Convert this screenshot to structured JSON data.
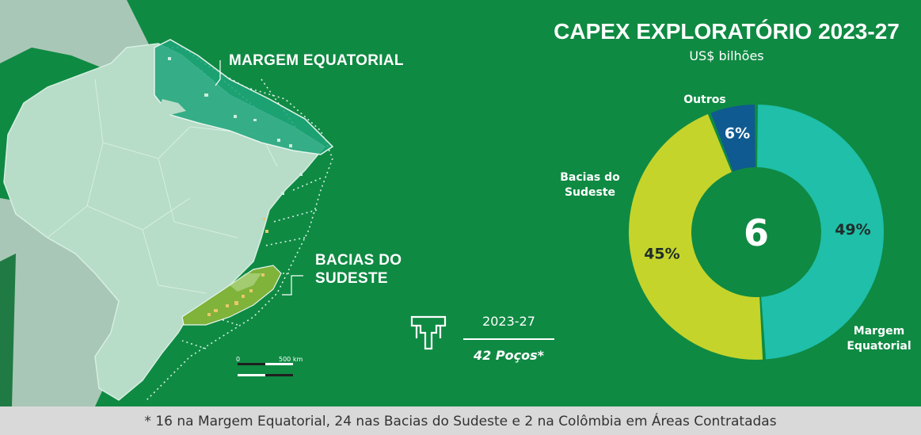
{
  "map": {
    "label_equatorial": "MARGEM EQUATORIAL",
    "label_sudeste_1": "BACIAS DO",
    "label_sudeste_2": "SUDESTE",
    "scale_zero": "0",
    "scale_500": "500 km"
  },
  "wells": {
    "period": "2023-27",
    "count": "42 Poços*"
  },
  "footer": {
    "note": "* 16 na Margem Equatorial, 24 nas Bacias do Sudeste e 2 na Colômbia em Áreas Contratadas"
  },
  "colors": {
    "background": "#0f8a43",
    "margem_equatorial": "#1fbfa9",
    "bacias_sudeste": "#c5d42b",
    "outros": "#0f5a91",
    "footer": "#d9d9d9"
  },
  "chart_data": {
    "type": "pie",
    "title": "CAPEX EXPLORATÓRIO 2023-27",
    "subtitle": "US$ bilhões",
    "center_value": "6",
    "categories": [
      "Margem Equatorial",
      "Bacias do Sudeste",
      "Outros"
    ],
    "values": [
      49,
      45,
      6
    ],
    "value_labels": [
      "49%",
      "45%",
      "6%"
    ],
    "legend_lines": [
      [
        "Margem",
        "Equatorial"
      ],
      [
        "Bacias do",
        "Sudeste"
      ],
      [
        "Outros"
      ]
    ],
    "colors": [
      "#1fbfa9",
      "#c5d42b",
      "#0f5a91"
    ],
    "donut": true
  }
}
